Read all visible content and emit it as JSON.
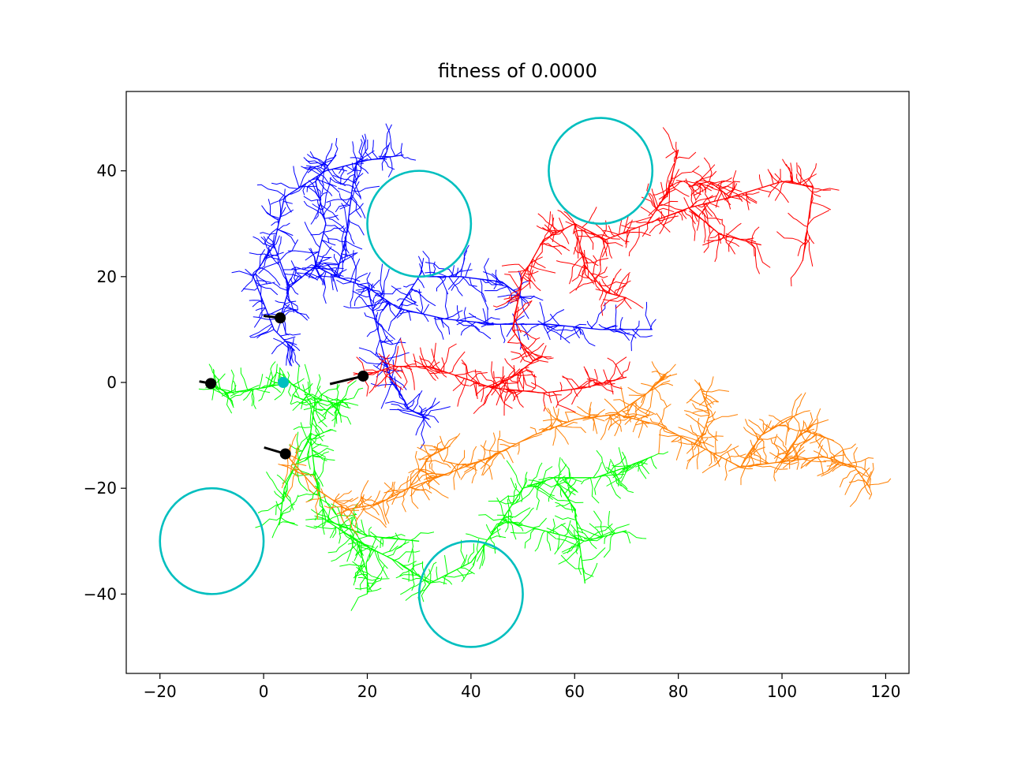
{
  "chart_data": {
    "type": "scatter",
    "title": "fitness of 0.0000",
    "xlabel": "",
    "ylabel": "",
    "xlim": [
      -26.5,
      124.5
    ],
    "ylim": [
      -55,
      55
    ],
    "xticks": [
      -20,
      0,
      20,
      40,
      60,
      80,
      100,
      120
    ],
    "yticks": [
      40,
      20,
      0,
      -20,
      -40
    ],
    "xtick_labels": [
      "−20",
      "0",
      "20",
      "40",
      "60",
      "80",
      "100",
      "120"
    ],
    "ytick_labels": [
      "40",
      "20",
      "0",
      "−20",
      "−40"
    ],
    "grid": false,
    "legend": "none",
    "obstacles": [
      {
        "cx": 30,
        "cy": 30,
        "r": 10,
        "color": "#00bfbf"
      },
      {
        "cx": 65,
        "cy": 40,
        "r": 10,
        "color": "#00bfbf"
      },
      {
        "cx": -10,
        "cy": -30,
        "r": 10,
        "color": "#00bfbf"
      },
      {
        "cx": 40,
        "cy": -40,
        "r": 10,
        "color": "#00bfbf"
      }
    ],
    "target": {
      "x": 3.8,
      "y": 0,
      "color": "#00bfbf"
    },
    "agents": [
      {
        "x": 3.2,
        "y": 12.2,
        "tail": [
          [
            0,
            12.6
          ],
          [
            3.2,
            12.2
          ]
        ]
      },
      {
        "x": -10.2,
        "y": -0.2,
        "tail": [
          [
            -12.4,
            0.2
          ],
          [
            -10.2,
            -0.2
          ]
        ]
      },
      {
        "x": 19.2,
        "y": 1.2,
        "tail": [
          [
            12.8,
            -0.3
          ],
          [
            19.2,
            1.2
          ]
        ]
      },
      {
        "x": 4.2,
        "y": -13.5,
        "tail": [
          [
            0.1,
            -12.3
          ],
          [
            4.2,
            -13.5
          ]
        ]
      }
    ],
    "series": [
      {
        "color": "#0000ff",
        "branches": [
          [
            [
              3.2,
              12.2
            ],
            [
              5,
              18
            ],
            [
              2,
              26
            ],
            [
              4,
              35
            ],
            [
              12,
              40
            ],
            [
              20,
              42
            ],
            [
              27,
              43
            ]
          ],
          [
            [
              5,
              18
            ],
            [
              10,
              22
            ],
            [
              14,
              20
            ],
            [
              20,
              18
            ],
            [
              26,
              14
            ],
            [
              35,
              12
            ],
            [
              45,
              11
            ],
            [
              55,
              11
            ],
            [
              65,
              10
            ],
            [
              75,
              10
            ]
          ],
          [
            [
              10,
              22
            ],
            [
              12,
              30
            ],
            [
              10,
              38
            ],
            [
              14,
              43
            ]
          ],
          [
            [
              20,
              18
            ],
            [
              22,
              10
            ],
            [
              24,
              2
            ],
            [
              28,
              -5
            ],
            [
              32,
              -7
            ]
          ],
          [
            [
              26,
              14
            ],
            [
              30,
              20
            ],
            [
              38,
              20
            ],
            [
              46,
              19
            ],
            [
              50,
              16
            ]
          ],
          [
            [
              2,
              26
            ],
            [
              -2,
              20
            ],
            [
              2,
              10
            ],
            [
              6,
              6
            ]
          ],
          [
            [
              14,
              20
            ],
            [
              16,
              28
            ],
            [
              17,
              36
            ],
            [
              18,
              42
            ]
          ]
        ]
      },
      {
        "color": "#ff0000",
        "branches": [
          [
            [
              19.2,
              1.2
            ],
            [
              25,
              3
            ],
            [
              32,
              3
            ],
            [
              38,
              1
            ],
            [
              44,
              -1
            ],
            [
              48,
              1
            ],
            [
              52,
              4
            ]
          ],
          [
            [
              52,
              4
            ],
            [
              48,
              10
            ],
            [
              50,
              20
            ],
            [
              54,
              27
            ],
            [
              60,
              30
            ],
            [
              66,
              27
            ],
            [
              74,
              30
            ],
            [
              82,
              33
            ],
            [
              90,
              35
            ],
            [
              100,
              38
            ],
            [
              106,
              37
            ],
            [
              104,
              23
            ]
          ],
          [
            [
              60,
              30
            ],
            [
              62,
              22
            ],
            [
              66,
              17
            ],
            [
              70,
              16
            ]
          ],
          [
            [
              74,
              30
            ],
            [
              78,
              36
            ],
            [
              80,
              44
            ]
          ],
          [
            [
              82,
              33
            ],
            [
              88,
              28
            ],
            [
              96,
              26
            ]
          ],
          [
            [
              44,
              -1
            ],
            [
              54,
              -2
            ],
            [
              62,
              -1
            ],
            [
              70,
              1
            ]
          ],
          [
            [
              90,
              35
            ],
            [
              86,
              38
            ],
            [
              82,
              37
            ]
          ]
        ]
      },
      {
        "color": "#00ff00",
        "branches": [
          [
            [
              -10.2,
              -0.2
            ],
            [
              -7,
              -2
            ],
            [
              0,
              -1
            ],
            [
              5,
              0
            ],
            [
              10,
              -3
            ],
            [
              14,
              -4
            ],
            [
              16,
              -3
            ]
          ],
          [
            [
              10,
              -3
            ],
            [
              9,
              -10
            ],
            [
              10,
              -18
            ],
            [
              12,
              -26
            ],
            [
              18,
              -30
            ],
            [
              26,
              -34
            ],
            [
              32,
              -38
            ],
            [
              40,
              -34
            ],
            [
              46,
              -26
            ],
            [
              50,
              -20
            ],
            [
              56,
              -18
            ],
            [
              64,
              -18
            ],
            [
              70,
              -16
            ],
            [
              75,
              -14
            ]
          ],
          [
            [
              46,
              -26
            ],
            [
              54,
              -28
            ],
            [
              62,
              -30
            ],
            [
              70,
              -28
            ]
          ],
          [
            [
              12,
              -26
            ],
            [
              20,
              -29
            ],
            [
              30,
              -30
            ]
          ],
          [
            [
              18,
              -30
            ],
            [
              20,
              -36
            ],
            [
              20,
              -40
            ]
          ],
          [
            [
              9,
              -10
            ],
            [
              4,
              -20
            ],
            [
              3,
              -27
            ]
          ],
          [
            [
              56,
              -18
            ],
            [
              60,
              -24
            ],
            [
              62,
              -38
            ]
          ]
        ]
      },
      {
        "color": "#ff7f00",
        "branches": [
          [
            [
              4.2,
              -13.5
            ],
            [
              10,
              -20
            ],
            [
              16,
              -24
            ],
            [
              22,
              -23
            ],
            [
              28,
              -20
            ],
            [
              36,
              -17
            ],
            [
              44,
              -14
            ],
            [
              52,
              -10
            ],
            [
              60,
              -7
            ],
            [
              68,
              -6
            ],
            [
              76,
              -8
            ],
            [
              84,
              -12
            ],
            [
              92,
              -16
            ],
            [
              100,
              -15
            ],
            [
              108,
              -14
            ],
            [
              114,
              -16
            ],
            [
              117,
              -20
            ]
          ],
          [
            [
              68,
              -6
            ],
            [
              74,
              -2
            ],
            [
              78,
              2
            ]
          ],
          [
            [
              92,
              -16
            ],
            [
              96,
              -10
            ],
            [
              103,
              -6
            ]
          ],
          [
            [
              100,
              -15
            ],
            [
              104,
              -9
            ],
            [
              110,
              -11
            ]
          ],
          [
            [
              28,
              -20
            ],
            [
              32,
              -14
            ],
            [
              36,
              -12
            ]
          ],
          [
            [
              84,
              -12
            ],
            [
              86,
              -6
            ],
            [
              84,
              0
            ]
          ]
        ]
      }
    ]
  }
}
